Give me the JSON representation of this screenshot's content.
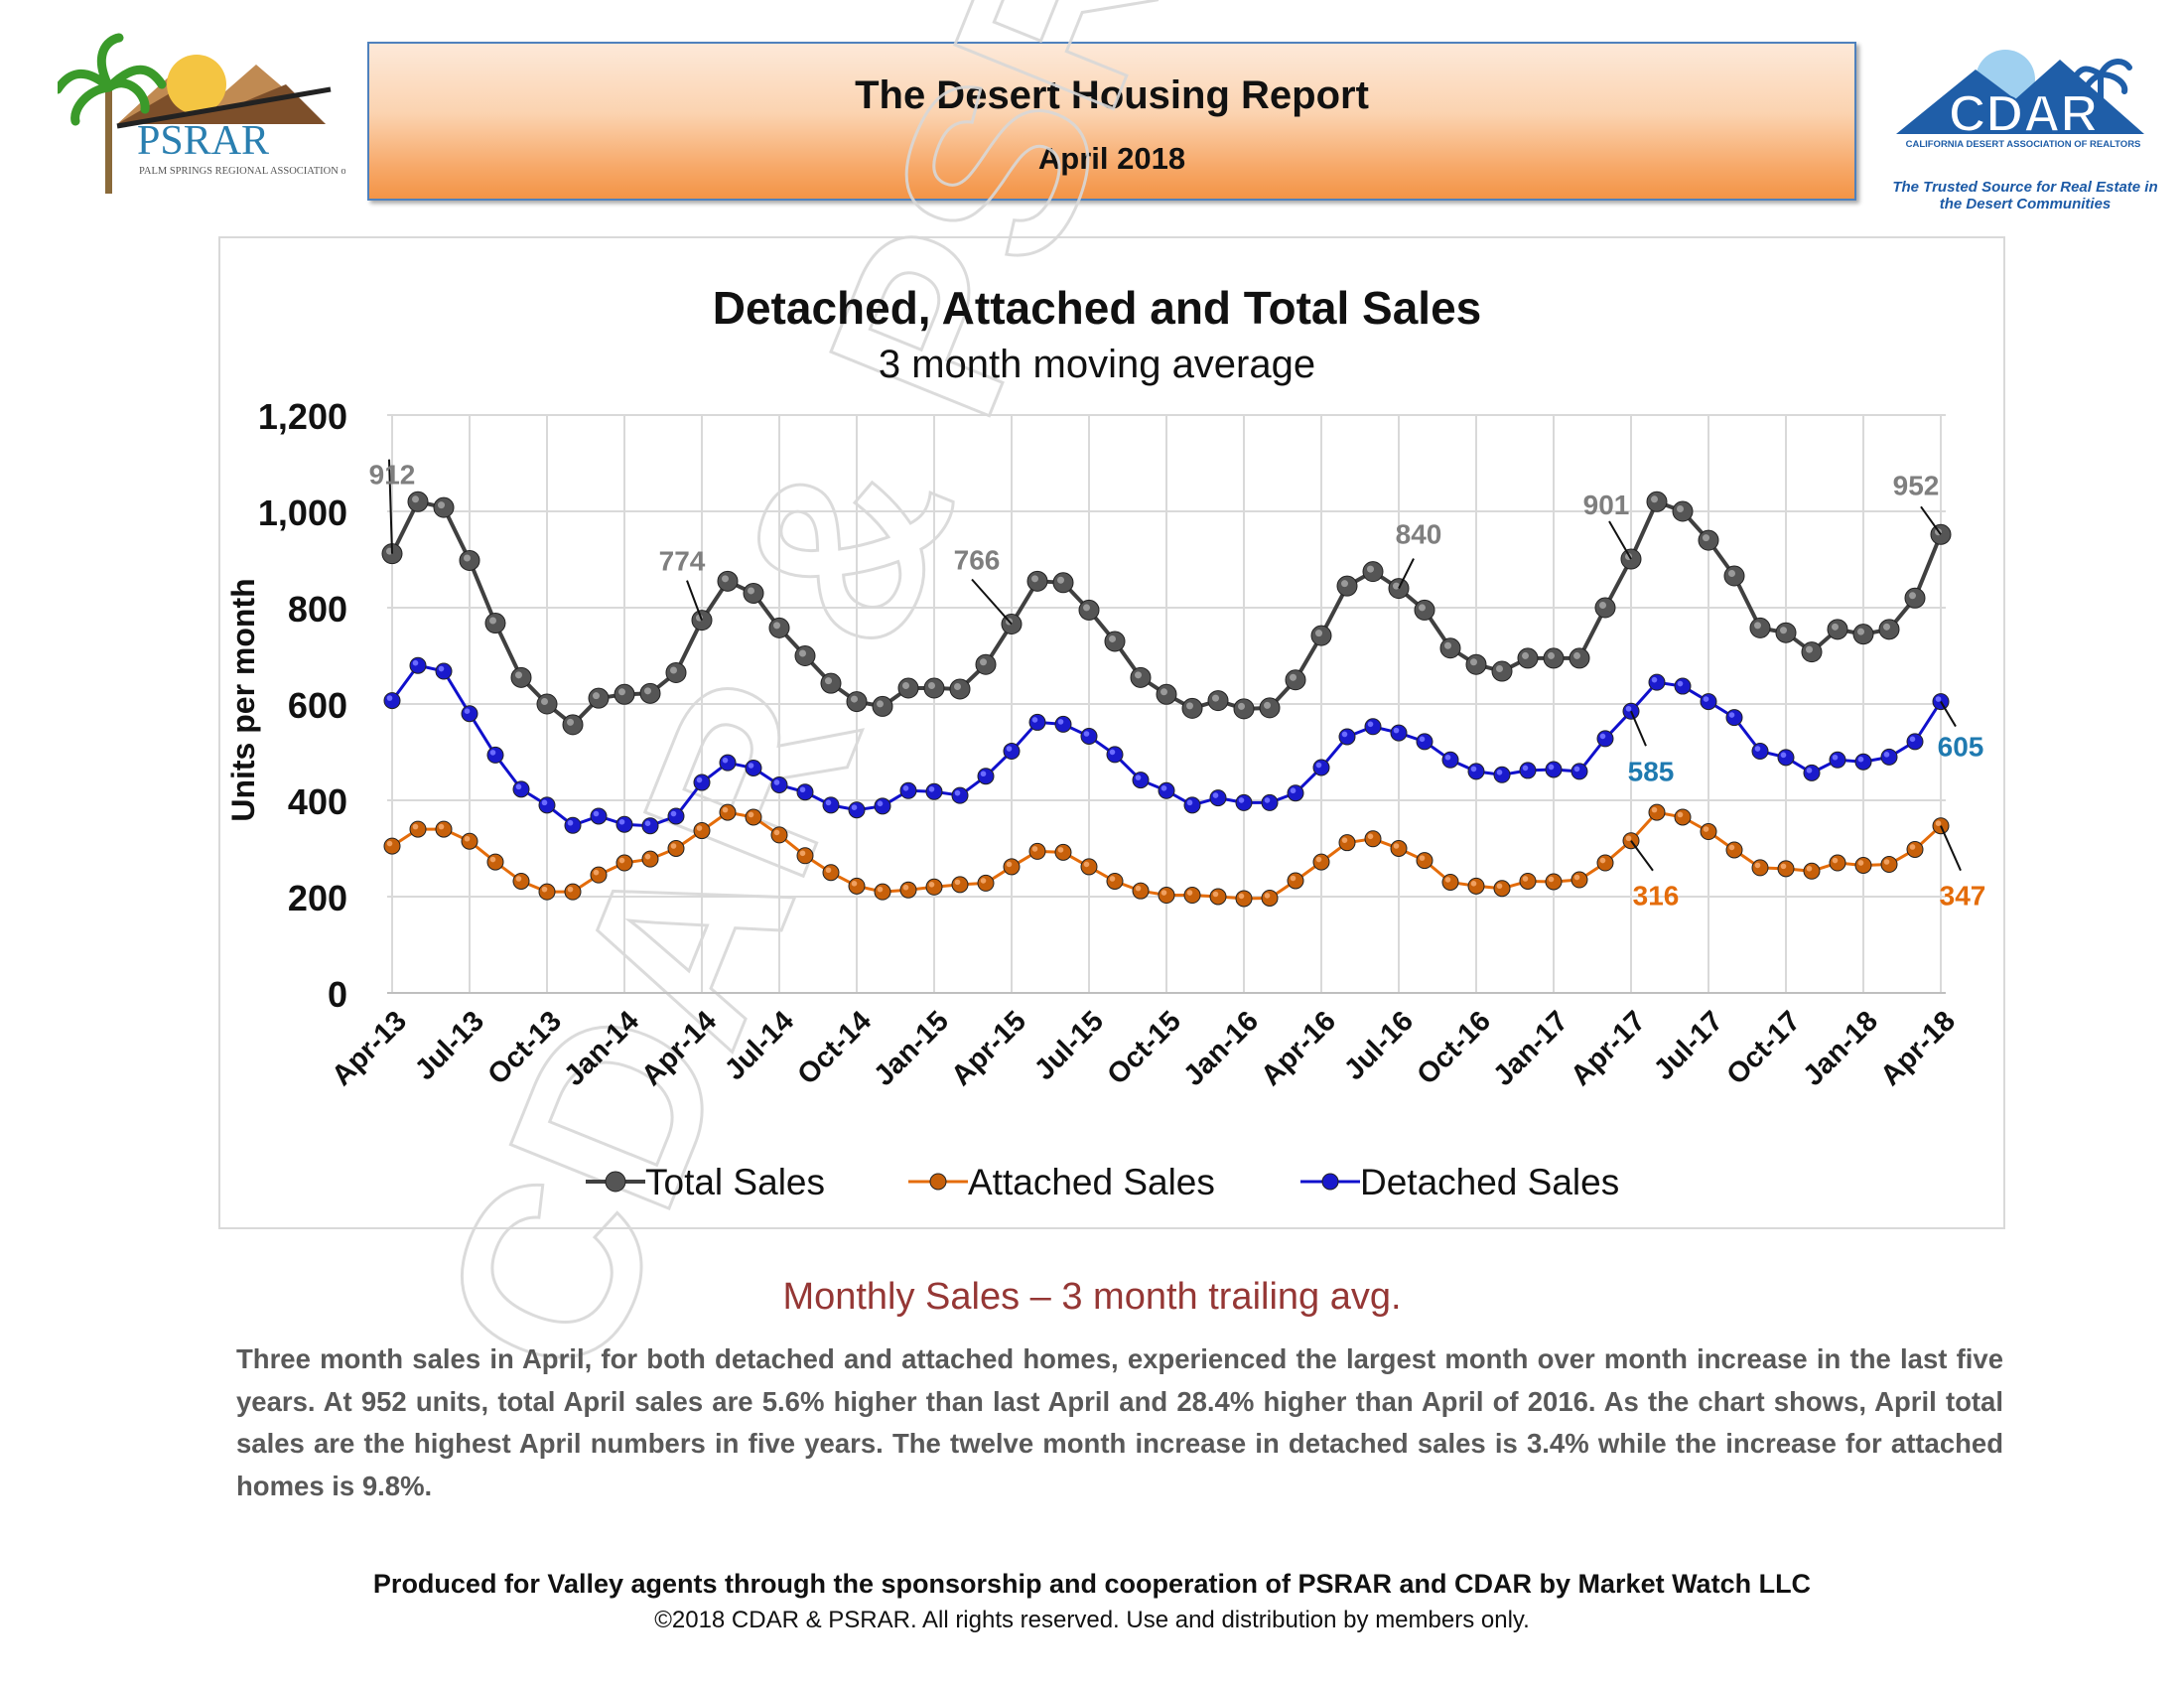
{
  "header": {
    "title": "The Desert Housing Report",
    "subtitle": "April 2018"
  },
  "logos": {
    "psrar_name": "PSRAR",
    "psrar_full": "PALM SPRINGS REGIONAL ASSOCIATION of REALTORS",
    "cdar_name": "CDAR",
    "cdar_full": "CALIFORNIA DESERT ASSOCIATION OF REALTORS",
    "cdar_tagline": "The Trusted Source for Real Estate in the Desert Communities"
  },
  "watermark": "CDAR & PSRAR",
  "chart_data": {
    "type": "line",
    "title": "Detached, Attached and Total Sales",
    "subtitle": "3 month moving average",
    "ylabel": "Units per month",
    "xlabel": "",
    "ylim": [
      0,
      1200
    ],
    "yticks": [
      0,
      200,
      400,
      600,
      800,
      1000,
      1200
    ],
    "ytick_labels": [
      "0",
      "200",
      "400",
      "600",
      "800",
      "1,000",
      "1,200"
    ],
    "grid": true,
    "legend_position": "bottom",
    "x_tick_labels": [
      "Apr-13",
      "Jul-13",
      "Oct-13",
      "Jan-14",
      "Apr-14",
      "Jul-14",
      "Oct-14",
      "Jan-15",
      "Apr-15",
      "Jul-15",
      "Oct-15",
      "Jan-16",
      "Apr-16",
      "Jul-16",
      "Oct-16",
      "Jan-17",
      "Apr-17",
      "Jul-17",
      "Oct-17",
      "Jan-18",
      "Apr-18"
    ],
    "series": [
      {
        "name": "Total Sales",
        "color": "#404040",
        "values": [
          912,
          1020,
          1008,
          898,
          768,
          655,
          600,
          557,
          612,
          620,
          622,
          665,
          774,
          855,
          830,
          758,
          700,
          643,
          605,
          595,
          633,
          633,
          631,
          682,
          766,
          855,
          852,
          795,
          730,
          655,
          620,
          591,
          607,
          590,
          592,
          650,
          742,
          845,
          875,
          840,
          795,
          716,
          682,
          668,
          695,
          695,
          695,
          800,
          901,
          1020,
          1000,
          940,
          866,
          758,
          748,
          708,
          755,
          745,
          755,
          820,
          952
        ]
      },
      {
        "name": "Attached Sales",
        "color": "#e46c0a",
        "values": [
          305,
          340,
          340,
          315,
          272,
          232,
          210,
          210,
          245,
          270,
          278,
          300,
          337,
          375,
          365,
          328,
          285,
          250,
          222,
          210,
          214,
          220,
          225,
          228,
          262,
          294,
          292,
          262,
          232,
          212,
          203,
          203,
          200,
          196,
          197,
          233,
          272,
          312,
          320,
          300,
          275,
          230,
          222,
          217,
          232,
          231,
          235,
          270,
          316,
          375,
          365,
          335,
          297,
          260,
          258,
          253,
          270,
          265,
          267,
          298,
          347
        ]
      },
      {
        "name": "Detached Sales",
        "color": "#1010cc",
        "values": [
          607,
          680,
          668,
          580,
          494,
          423,
          390,
          348,
          367,
          350,
          347,
          367,
          437,
          478,
          467,
          432,
          417,
          390,
          380,
          388,
          420,
          418,
          410,
          450,
          502,
          562,
          558,
          533,
          495,
          442,
          420,
          390,
          405,
          395,
          395,
          415,
          468,
          532,
          553,
          540,
          522,
          484,
          460,
          453,
          462,
          464,
          460,
          528,
          585,
          645,
          637,
          605,
          572,
          502,
          489,
          457,
          484,
          480,
          490,
          522,
          605
        ]
      }
    ],
    "annotations": [
      {
        "series": "Total Sales",
        "index": 0,
        "label": "912"
      },
      {
        "series": "Total Sales",
        "index": 12,
        "label": "774"
      },
      {
        "series": "Total Sales",
        "index": 24,
        "label": "766"
      },
      {
        "series": "Total Sales",
        "index": 39,
        "label": "840"
      },
      {
        "series": "Total Sales",
        "index": 48,
        "label": "901"
      },
      {
        "series": "Total Sales",
        "index": 60,
        "label": "952"
      },
      {
        "series": "Detached Sales",
        "index": 48,
        "label": "585"
      },
      {
        "series": "Detached Sales",
        "index": 60,
        "label": "605"
      },
      {
        "series": "Attached Sales",
        "index": 48,
        "label": "316"
      },
      {
        "series": "Attached Sales",
        "index": 60,
        "label": "347"
      }
    ]
  },
  "caption": "Monthly Sales – 3 month trailing avg.",
  "summary": "Three month sales in April, for both detached and attached homes, experienced the largest month over month increase in the last five years. At 952 units, total April sales are 5.6% higher than last April and 28.4% higher than April of 2016. As the chart shows, April total sales are the highest April numbers in five years. The twelve month increase in detached sales is 3.4% while the increase for attached homes is 9.8%.",
  "footer": {
    "produced_by": "Produced for Valley agents through the sponsorship and cooperation of PSRAR and CDAR by Market Watch LLC",
    "copyright": "©2018 CDAR & PSRAR.  All rights reserved.  Use and distribution by members only."
  }
}
